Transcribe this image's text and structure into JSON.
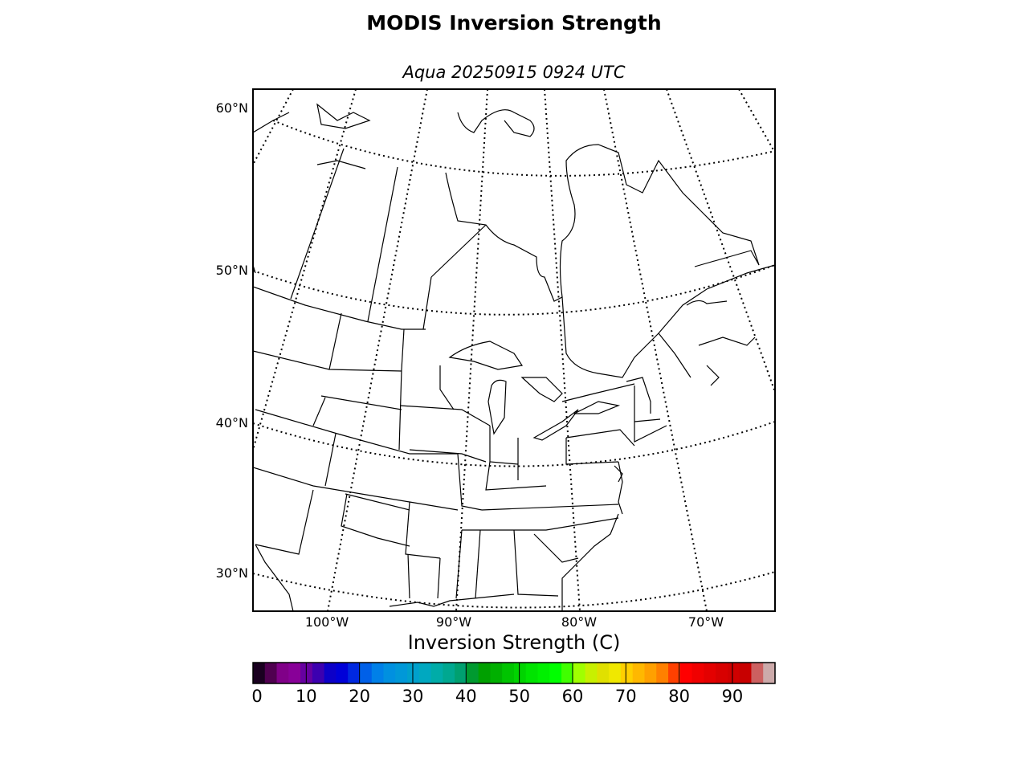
{
  "figure": {
    "title": "MODIS Inversion Strength",
    "subtitle": "Aqua 20250915 0924 UTC"
  },
  "map": {
    "projection": "lambert-conformal",
    "region": "North America (Great Lakes / Northeast US / Eastern Canada)",
    "latitude_labels": [
      "60°N",
      "50°N",
      "40°N",
      "30°N"
    ],
    "longitude_labels": [
      "100°W",
      "90°W",
      "80°W",
      "70°W"
    ],
    "graticule_style": "dotted",
    "coastline_color": "#000000"
  },
  "colorbar": {
    "label": "Inversion Strength (C)",
    "ticks": [
      "0",
      "10",
      "20",
      "30",
      "40",
      "50",
      "60",
      "70",
      "80",
      "90"
    ],
    "range": [
      0,
      98
    ],
    "colors": [
      "#1a0020",
      "#500050",
      "#800088",
      "#880098",
      "#6600a0",
      "#3c00b0",
      "#0c00c8",
      "#0000d8",
      "#0028e0",
      "#0060e8",
      "#0080e8",
      "#0090e0",
      "#0098d8",
      "#00a0cc",
      "#00a8c0",
      "#00aca8",
      "#00a890",
      "#00a070",
      "#009a30",
      "#00a000",
      "#00b000",
      "#00c400",
      "#00d400",
      "#00e400",
      "#00f000",
      "#00ff00",
      "#40ff00",
      "#a0ff00",
      "#c8f000",
      "#e0e000",
      "#f0e800",
      "#ffd000",
      "#ffb800",
      "#ffa000",
      "#ff8000",
      "#ff4000",
      "#ff0000",
      "#f00000",
      "#e40000",
      "#d80000",
      "#d00000",
      "#c80000",
      "#cc6060",
      "#ccaaaa"
    ]
  }
}
